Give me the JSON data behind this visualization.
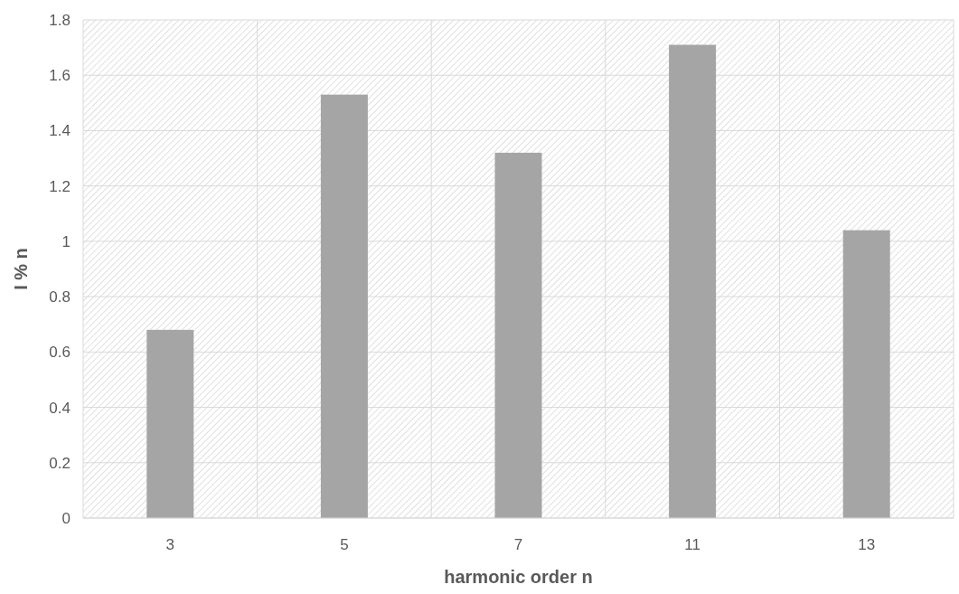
{
  "chart_data": {
    "type": "bar",
    "xlabel": "harmonic order n",
    "ylabel": "I % n",
    "categories": [
      "3",
      "5",
      "7",
      "11",
      "13"
    ],
    "values": [
      0.68,
      1.53,
      1.32,
      1.71,
      1.04
    ],
    "color": "#a5a5a5",
    "ylim": [
      0,
      1.8
    ],
    "yticks": [
      0,
      0.2,
      0.4,
      0.6,
      0.8,
      1,
      1.2,
      1.4,
      1.6,
      1.8
    ],
    "grid": true
  }
}
